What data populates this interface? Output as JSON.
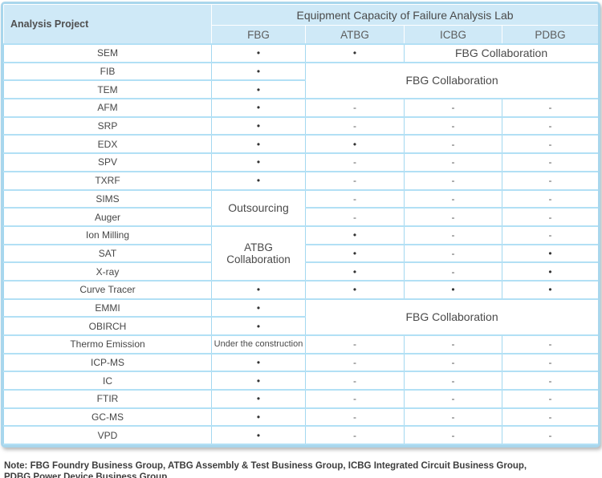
{
  "colors": {
    "header_bg": "#cfe9f7",
    "grid_border": "#a3d8f0",
    "outer_border": "#a9d6ec",
    "text": "#4d4d4d"
  },
  "header": {
    "corner_label": "Analysis Project",
    "title": "Equipment Capacity of Failure Analysis Lab",
    "columns": [
      "FBG",
      "ATBG",
      "ICBG",
      "PDBG"
    ]
  },
  "symbols": {
    "available": "•",
    "not_available": "-"
  },
  "rows": [
    {
      "label": "SEM",
      "fbg": "•",
      "atbg": "•",
      "icbg_pdbg": "FBG Collaboration"
    },
    {
      "label": "FIB",
      "fbg": "•",
      "right": "FBG Collaboration"
    },
    {
      "label": "TEM",
      "fbg": "•"
    },
    {
      "label": "AFM",
      "fbg": "•",
      "atbg": "-",
      "icbg": "-",
      "pdbg": "-"
    },
    {
      "label": "SRP",
      "fbg": "•",
      "atbg": "-",
      "icbg": "-",
      "pdbg": "-"
    },
    {
      "label": "EDX",
      "fbg": "•",
      "atbg": "•",
      "icbg": "-",
      "pdbg": "-"
    },
    {
      "label": "SPV",
      "fbg": "•",
      "atbg": "-",
      "icbg": "-",
      "pdbg": "-"
    },
    {
      "label": "TXRF",
      "fbg": "•",
      "atbg": "-",
      "icbg": "-",
      "pdbg": "-"
    },
    {
      "label": "SIMS",
      "fbg": "Outsourcing",
      "atbg": "-",
      "icbg": "-",
      "pdbg": "-"
    },
    {
      "label": "Auger",
      "atbg": "-",
      "icbg": "-",
      "pdbg": "-"
    },
    {
      "label": "Ion Milling",
      "fbg": "ATBG Collaboration",
      "atbg": "•",
      "icbg": "-",
      "pdbg": "-"
    },
    {
      "label": "SAT",
      "atbg": "•",
      "icbg": "-",
      "pdbg": "•"
    },
    {
      "label": "X-ray",
      "atbg": "•",
      "icbg": "-",
      "pdbg": "•"
    },
    {
      "label": "Curve Tracer",
      "fbg": "•",
      "atbg": "•",
      "icbg": "•",
      "pdbg": "•"
    },
    {
      "label": "EMMI",
      "fbg": "•",
      "right": "FBG Collaboration"
    },
    {
      "label": "OBIRCH",
      "fbg": "•"
    },
    {
      "label": "Thermo Emission",
      "fbg": "Under the construction",
      "atbg": "-",
      "icbg": "-",
      "pdbg": "-"
    },
    {
      "label": "ICP-MS",
      "fbg": "•",
      "atbg": "-",
      "icbg": "-",
      "pdbg": "-"
    },
    {
      "label": "IC",
      "fbg": "•",
      "atbg": "-",
      "icbg": "-",
      "pdbg": "-"
    },
    {
      "label": "FTIR",
      "fbg": "•",
      "atbg": "-",
      "icbg": "-",
      "pdbg": "-"
    },
    {
      "label": "GC-MS",
      "fbg": "•",
      "atbg": "-",
      "icbg": "-",
      "pdbg": "-"
    },
    {
      "label": "VPD",
      "fbg": "•",
      "atbg": "-",
      "icbg": "-",
      "pdbg": "-"
    }
  ],
  "note": {
    "line1": "Note: FBG Foundry Business Group, ATBG Assembly & Test Business Group, ICBG Integrated Circuit Business Group,",
    "line2": "PDBG Power Device Business Group"
  }
}
